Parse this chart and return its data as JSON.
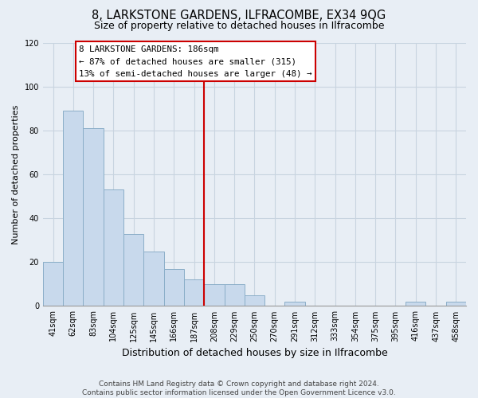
{
  "title": "8, LARKSTONE GARDENS, ILFRACOMBE, EX34 9QG",
  "subtitle": "Size of property relative to detached houses in Ilfracombe",
  "xlabel": "Distribution of detached houses by size in Ilfracombe",
  "ylabel": "Number of detached properties",
  "categories": [
    "41sqm",
    "62sqm",
    "83sqm",
    "104sqm",
    "125sqm",
    "145sqm",
    "166sqm",
    "187sqm",
    "208sqm",
    "229sqm",
    "250sqm",
    "270sqm",
    "291sqm",
    "312sqm",
    "333sqm",
    "354sqm",
    "375sqm",
    "395sqm",
    "416sqm",
    "437sqm",
    "458sqm"
  ],
  "values": [
    20,
    89,
    81,
    53,
    33,
    25,
    17,
    12,
    10,
    10,
    5,
    0,
    2,
    0,
    0,
    0,
    0,
    0,
    2,
    0,
    2
  ],
  "bar_color": "#c8d9ec",
  "bar_edge_color": "#8baec8",
  "vline_color": "#cc0000",
  "vline_after_index": 7,
  "annotation_lines": [
    "8 LARKSTONE GARDENS: 186sqm",
    "← 87% of detached houses are smaller (315)",
    "13% of semi-detached houses are larger (48) →"
  ],
  "annotation_box_color": "white",
  "annotation_box_edge_color": "#cc0000",
  "ylim": [
    0,
    120
  ],
  "yticks": [
    0,
    20,
    40,
    60,
    80,
    100,
    120
  ],
  "footer_lines": [
    "Contains HM Land Registry data © Crown copyright and database right 2024.",
    "Contains public sector information licensed under the Open Government Licence v3.0."
  ],
  "background_color": "#e8eef5",
  "grid_color": "#c8d4e0",
  "title_fontsize": 10.5,
  "subtitle_fontsize": 9,
  "ylabel_fontsize": 8,
  "xlabel_fontsize": 9,
  "tick_fontsize": 7,
  "footer_fontsize": 6.5
}
